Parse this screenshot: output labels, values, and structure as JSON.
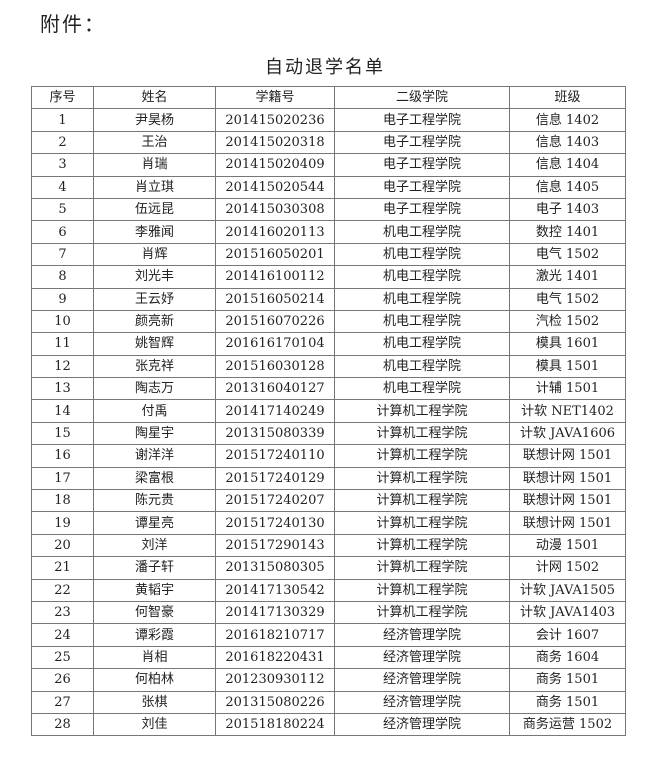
{
  "attachment_label": "附件：",
  "title": "自动退学名单",
  "headers": [
    "序号",
    "姓名",
    "学籍号",
    "二级学院",
    "班级"
  ],
  "rows": [
    [
      "1",
      "尹昊杨",
      "201415020236",
      "电子工程学院",
      "信息 1402"
    ],
    [
      "2",
      "王治",
      "201415020318",
      "电子工程学院",
      "信息 1403"
    ],
    [
      "3",
      "肖瑞",
      "201415020409",
      "电子工程学院",
      "信息 1404"
    ],
    [
      "4",
      "肖立琪",
      "201415020544",
      "电子工程学院",
      "信息 1405"
    ],
    [
      "5",
      "伍远昆",
      "201415030308",
      "电子工程学院",
      "电子 1403"
    ],
    [
      "6",
      "李雅闻",
      "201416020113",
      "机电工程学院",
      "数控 1401"
    ],
    [
      "7",
      "肖辉",
      "201516050201",
      "机电工程学院",
      "电气 1502"
    ],
    [
      "8",
      "刘光丰",
      "201416100112",
      "机电工程学院",
      "激光 1401"
    ],
    [
      "9",
      "王云妤",
      "201516050214",
      "机电工程学院",
      "电气 1502"
    ],
    [
      "10",
      "颜亮新",
      "201516070226",
      "机电工程学院",
      "汽检 1502"
    ],
    [
      "11",
      "姚智辉",
      "201616170104",
      "机电工程学院",
      "模具 1601"
    ],
    [
      "12",
      "张克祥",
      "201516030128",
      "机电工程学院",
      "模具 1501"
    ],
    [
      "13",
      "陶志万",
      "201316040127",
      "机电工程学院",
      "计辅 1501"
    ],
    [
      "14",
      "付禹",
      "201417140249",
      "计算机工程学院",
      "计软 NET1402"
    ],
    [
      "15",
      "陶星宇",
      "201315080339",
      "计算机工程学院",
      "计软 JAVA1606"
    ],
    [
      "16",
      "谢洋洋",
      "201517240110",
      "计算机工程学院",
      "联想计网 1501"
    ],
    [
      "17",
      "梁富根",
      "201517240129",
      "计算机工程学院",
      "联想计网 1501"
    ],
    [
      "18",
      "陈元贵",
      "201517240207",
      "计算机工程学院",
      "联想计网 1501"
    ],
    [
      "19",
      "谭星亮",
      "201517240130",
      "计算机工程学院",
      "联想计网 1501"
    ],
    [
      "20",
      "刘洋",
      "201517290143",
      "计算机工程学院",
      "动漫 1501"
    ],
    [
      "21",
      "潘子轩",
      "201315080305",
      "计算机工程学院",
      "计网 1502"
    ],
    [
      "22",
      "黄韬宇",
      "201417130542",
      "计算机工程学院",
      "计软 JAVA1505"
    ],
    [
      "23",
      "何智豪",
      "201417130329",
      "计算机工程学院",
      "计软 JAVA1403"
    ],
    [
      "24",
      "谭彩霞",
      "201618210717",
      "经济管理学院",
      "会计 1607"
    ],
    [
      "25",
      "肖相",
      "201618220431",
      "经济管理学院",
      "商务 1604"
    ],
    [
      "26",
      "何柏林",
      "201230930112",
      "经济管理学院",
      "商务 1501"
    ],
    [
      "27",
      "张棋",
      "201315080226",
      "经济管理学院",
      "商务 1501"
    ],
    [
      "28",
      "刘佳",
      "201518180224",
      "经济管理学院",
      "商务运营 1502"
    ]
  ]
}
